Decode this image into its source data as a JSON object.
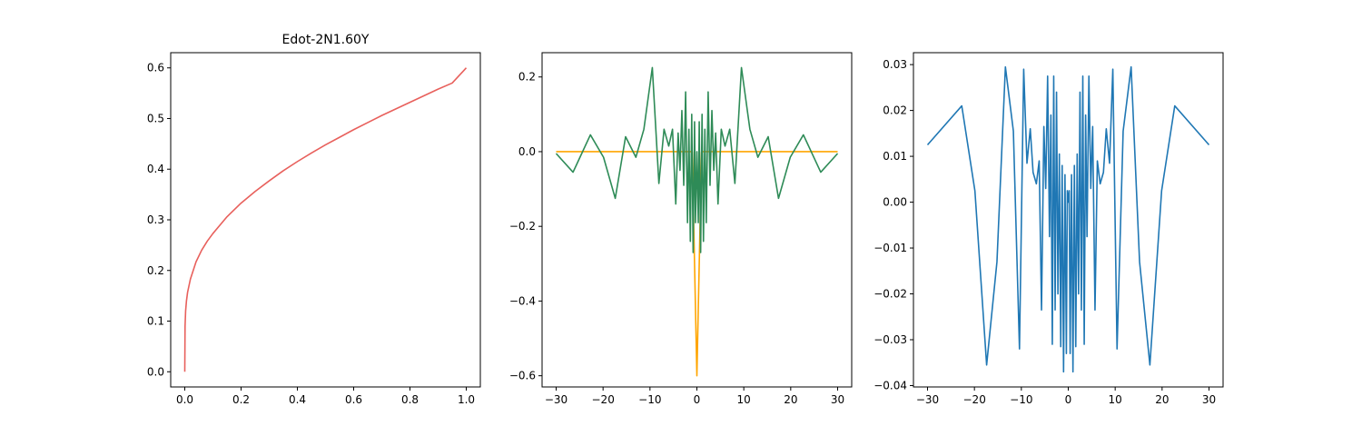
{
  "chart_data": [
    {
      "type": "line",
      "title": "Edot-2N1.60Y",
      "xlabel": "",
      "ylabel": "",
      "xlim": [
        -0.05,
        1.05
      ],
      "ylim": [
        -0.03,
        0.63
      ],
      "xticks": [
        0.0,
        0.2,
        0.4,
        0.6,
        0.8,
        1.0
      ],
      "xtick_labels": [
        "0.0",
        "0.2",
        "0.4",
        "0.6",
        "0.8",
        "1.0"
      ],
      "yticks": [
        0.0,
        0.1,
        0.2,
        0.3,
        0.4,
        0.5,
        0.6
      ],
      "ytick_labels": [
        "0.0",
        "0.1",
        "0.2",
        "0.3",
        "0.4",
        "0.5",
        "0.6"
      ],
      "grid": false,
      "series": [
        {
          "color": "#e8605c",
          "x": [
            0.0,
            0.001,
            0.003,
            0.006,
            0.01,
            0.02,
            0.04,
            0.06,
            0.08,
            0.1,
            0.15,
            0.2,
            0.25,
            0.3,
            0.35,
            0.4,
            0.45,
            0.5,
            0.55,
            0.6,
            0.65,
            0.7,
            0.75,
            0.8,
            0.85,
            0.9,
            0.95,
            1.0
          ],
          "y": [
            0.0,
            0.09,
            0.12,
            0.14,
            0.157,
            0.183,
            0.217,
            0.24,
            0.258,
            0.273,
            0.306,
            0.333,
            0.356,
            0.377,
            0.397,
            0.415,
            0.432,
            0.448,
            0.463,
            0.478,
            0.492,
            0.506,
            0.519,
            0.532,
            0.545,
            0.558,
            0.57,
            0.6
          ]
        }
      ]
    },
    {
      "type": "line",
      "title": "",
      "xlabel": "",
      "ylabel": "",
      "xlim": [
        -33,
        33
      ],
      "ylim": [
        -0.63,
        0.265
      ],
      "xticks": [
        -30,
        -20,
        -10,
        0,
        10,
        20,
        30
      ],
      "xtick_labels": [
        "−30",
        "−20",
        "−10",
        "0",
        "10",
        "20",
        "30"
      ],
      "yticks": [
        -0.6,
        -0.4,
        -0.2,
        0.0,
        0.2
      ],
      "ytick_labels": [
        "−0.6",
        "−0.4",
        "−0.2",
        "0.0",
        "0.2"
      ],
      "grid": false,
      "series": [
        {
          "color": "#ffa500",
          "x": [
            -30,
            -1,
            0,
            1,
            30
          ],
          "y": [
            0.0,
            0.0,
            -0.6,
            0.0,
            0.0
          ]
        },
        {
          "color": "#2e8b57",
          "x": [
            -30,
            -26.4,
            -22.7,
            -19.9,
            -17.4,
            -15.2,
            -13.0,
            -11.3,
            -9.5,
            -8.1,
            -7.0,
            -6.0,
            -5.2,
            -4.5,
            -4.0,
            -3.6,
            -3.2,
            -2.8,
            -2.4,
            -2.0,
            -1.7,
            -1.4,
            -1.1,
            -0.8,
            -0.5,
            -0.3,
            0.0,
            0.3,
            0.5,
            0.8,
            1.1,
            1.4,
            1.7,
            2.0,
            2.4,
            2.8,
            3.2,
            3.6,
            4.0,
            4.5,
            5.2,
            6.0,
            7.0,
            8.1,
            9.5,
            11.3,
            13.0,
            15.2,
            17.4,
            19.9,
            22.7,
            26.4,
            30
          ],
          "y": [
            -0.005,
            -0.055,
            0.045,
            -0.015,
            -0.125,
            0.04,
            -0.015,
            0.06,
            0.225,
            -0.085,
            0.06,
            0.015,
            0.06,
            -0.14,
            0.05,
            -0.05,
            0.11,
            -0.09,
            0.16,
            -0.19,
            0.06,
            -0.24,
            0.1,
            -0.27,
            0.08,
            -0.19,
            0.0,
            -0.19,
            0.08,
            -0.27,
            0.1,
            -0.24,
            0.06,
            -0.19,
            0.16,
            -0.09,
            0.11,
            -0.05,
            0.05,
            -0.14,
            0.06,
            0.015,
            0.06,
            -0.085,
            0.225,
            0.06,
            -0.015,
            0.04,
            -0.125,
            -0.015,
            0.045,
            -0.055,
            -0.005
          ]
        }
      ]
    },
    {
      "type": "line",
      "title": "",
      "xlabel": "",
      "ylabel": "",
      "xlim": [
        -33,
        33
      ],
      "ylim": [
        -0.0403,
        0.0326
      ],
      "xticks": [
        -30,
        -20,
        -10,
        0,
        10,
        20,
        30
      ],
      "xtick_labels": [
        "−30",
        "−20",
        "−10",
        "0",
        "10",
        "20",
        "30"
      ],
      "yticks": [
        -0.04,
        -0.03,
        -0.02,
        -0.01,
        0.0,
        0.01,
        0.02,
        0.03
      ],
      "ytick_labels": [
        "−0.04",
        "−0.03",
        "−0.02",
        "−0.01",
        "0.00",
        "0.01",
        "0.02",
        "0.03"
      ],
      "grid": false,
      "series": [
        {
          "color": "#1f77b4",
          "x": [
            -30,
            -22.7,
            -19.9,
            -17.4,
            -15.2,
            -13.4,
            -11.7,
            -10.4,
            -9.5,
            -8.8,
            -8.1,
            -7.5,
            -6.8,
            -6.2,
            -5.7,
            -5.2,
            -4.8,
            -4.4,
            -4.0,
            -3.7,
            -3.4,
            -3.1,
            -2.8,
            -2.5,
            -2.2,
            -1.9,
            -1.6,
            -1.3,
            -1.0,
            -0.7,
            -0.4,
            -0.2,
            0.0,
            0.2,
            0.4,
            0.7,
            1.0,
            1.3,
            1.6,
            1.9,
            2.2,
            2.5,
            2.8,
            3.1,
            3.4,
            3.7,
            4.0,
            4.4,
            4.8,
            5.2,
            5.7,
            6.2,
            6.8,
            7.5,
            8.1,
            8.8,
            9.5,
            10.4,
            11.7,
            13.4,
            15.2,
            17.4,
            19.9,
            22.7,
            30
          ],
          "y": [
            0.0125,
            0.021,
            0.0025,
            -0.0355,
            -0.013,
            0.0295,
            0.0155,
            -0.032,
            0.029,
            0.0085,
            0.016,
            0.0065,
            0.004,
            0.009,
            -0.0235,
            0.0165,
            0.003,
            0.0275,
            -0.0075,
            0.019,
            -0.031,
            0.0275,
            -0.0235,
            0.024,
            -0.02,
            0.0105,
            -0.0315,
            0.008,
            -0.037,
            0.006,
            -0.033,
            0.0025,
            0.0,
            0.0025,
            -0.033,
            0.006,
            -0.037,
            0.008,
            -0.0315,
            0.0105,
            -0.02,
            0.024,
            -0.0235,
            0.0275,
            -0.031,
            0.019,
            -0.0075,
            0.0275,
            0.003,
            0.0165,
            -0.0235,
            0.009,
            0.004,
            0.0065,
            0.016,
            0.0085,
            0.029,
            -0.032,
            0.0155,
            0.0295,
            -0.013,
            -0.0355,
            0.0025,
            0.021,
            0.0125
          ]
        }
      ]
    }
  ]
}
